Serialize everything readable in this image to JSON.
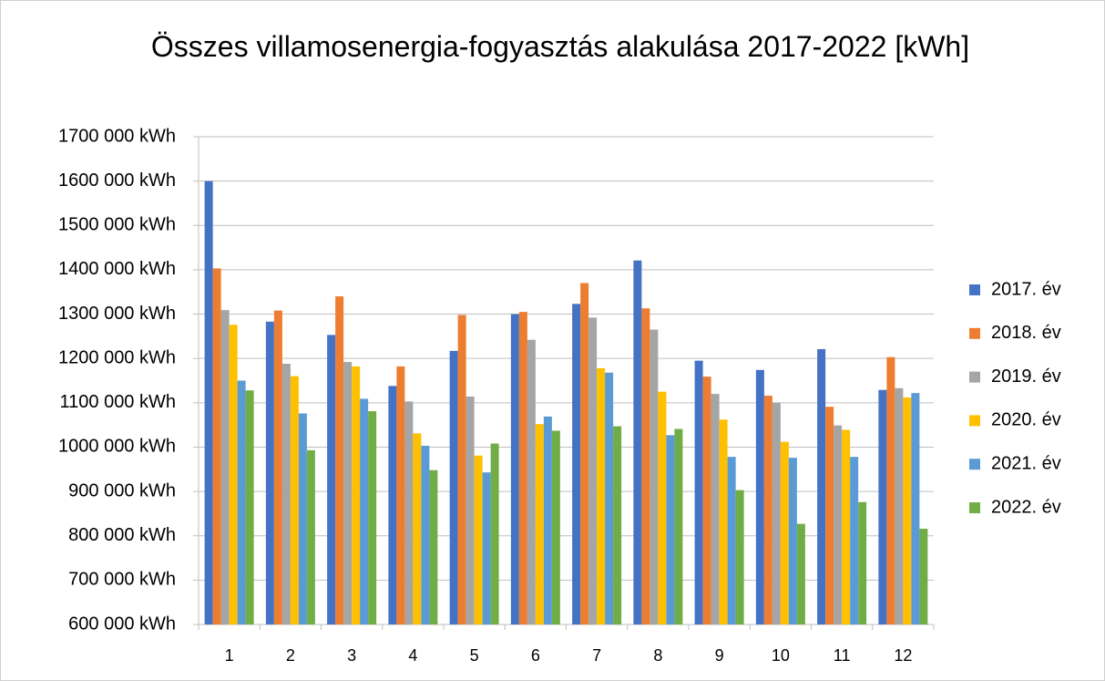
{
  "chart_data": {
    "type": "bar",
    "title": "Összes villamosenergia-fogyasztás alakulása 2017-2022 [kWh]",
    "categories": [
      "1",
      "2",
      "3",
      "4",
      "5",
      "6",
      "7",
      "8",
      "9",
      "10",
      "11",
      "12"
    ],
    "series": [
      {
        "name": "2017. év",
        "color": "#4472c4",
        "values": [
          1600000,
          1283000,
          1253000,
          1138000,
          1217000,
          1300000,
          1323000,
          1421000,
          1195000,
          1174000,
          1221000,
          1129000
        ]
      },
      {
        "name": "2018. év",
        "color": "#ed7d31",
        "values": [
          1403000,
          1308000,
          1340000,
          1182000,
          1298000,
          1305000,
          1370000,
          1313000,
          1159000,
          1116000,
          1091000,
          1203000
        ]
      },
      {
        "name": "2019. év",
        "color": "#a5a5a5",
        "values": [
          1309000,
          1188000,
          1192000,
          1103000,
          1114000,
          1242000,
          1292000,
          1265000,
          1120000,
          1100000,
          1049000,
          1133000
        ]
      },
      {
        "name": "2020. év",
        "color": "#ffc000",
        "values": [
          1276000,
          1160000,
          1182000,
          1031000,
          981000,
          1052000,
          1178000,
          1125000,
          1062000,
          1012000,
          1039000,
          1112000
        ]
      },
      {
        "name": "2021. év",
        "color": "#5b9bd5",
        "values": [
          1150000,
          1076000,
          1109000,
          1003000,
          943000,
          1069000,
          1168000,
          1027000,
          978000,
          976000,
          978000,
          1122000
        ]
      },
      {
        "name": "2022. év",
        "color": "#70ad47",
        "values": [
          1128000,
          993000,
          1081000,
          948000,
          1008000,
          1037000,
          1047000,
          1041000,
          903000,
          827000,
          876000,
          816000
        ]
      }
    ],
    "ylim": [
      600000,
      1700000
    ],
    "yticks": [
      {
        "value": 600000,
        "label": "600 000 kWh"
      },
      {
        "value": 700000,
        "label": "700 000 kWh"
      },
      {
        "value": 800000,
        "label": "800 000 kWh"
      },
      {
        "value": 900000,
        "label": "900 000 kWh"
      },
      {
        "value": 1000000,
        "label": "1000 000 kWh"
      },
      {
        "value": 1100000,
        "label": "1100 000 kWh"
      },
      {
        "value": 1200000,
        "label": "1200 000 kWh"
      },
      {
        "value": 1300000,
        "label": "1300 000 kWh"
      },
      {
        "value": 1400000,
        "label": "1400 000 kWh"
      },
      {
        "value": 1500000,
        "label": "1500 000 kWh"
      },
      {
        "value": 1600000,
        "label": "1600 000 kWh"
      },
      {
        "value": 1700000,
        "label": "1700 000 kWh"
      }
    ],
    "grid": true,
    "legend": "right"
  }
}
